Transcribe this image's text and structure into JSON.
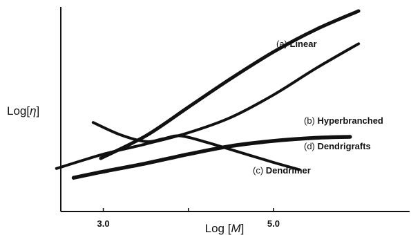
{
  "chart_data": {
    "type": "line",
    "xlabel_prefix": "Log [",
    "xlabel_var": "M",
    "xlabel_suffix": "]",
    "ylabel_prefix": "Log[",
    "ylabel_var": "η",
    "ylabel_suffix": "]",
    "xlim": [
      2.5,
      6.6
    ],
    "ylim": [
      0,
      10
    ],
    "x_ticks": [
      {
        "value": 3.0,
        "label": "3.0"
      },
      {
        "value": 4.0,
        "label": ""
      },
      {
        "value": 5.0,
        "label": "5.0"
      }
    ],
    "series": [
      {
        "key": "a",
        "prefix": "(a) ",
        "name": "Linear",
        "points": [
          [
            2.97,
            2.6
          ],
          [
            3.5,
            3.7
          ],
          [
            4.0,
            5.1
          ],
          [
            4.5,
            6.5
          ],
          [
            5.0,
            7.8
          ],
          [
            5.5,
            8.9
          ],
          [
            6.0,
            9.8
          ]
        ]
      },
      {
        "key": "b",
        "prefix": "(b) ",
        "name": "Hyperbranched",
        "points": [
          [
            2.45,
            2.1
          ],
          [
            3.0,
            2.8
          ],
          [
            3.5,
            3.3
          ],
          [
            4.0,
            3.85
          ],
          [
            4.5,
            4.6
          ],
          [
            5.0,
            5.7
          ],
          [
            5.5,
            7.0
          ],
          [
            6.0,
            8.2
          ]
        ]
      },
      {
        "key": "c",
        "prefix": "(c) ",
        "name": "Dendrimer",
        "points": [
          [
            2.88,
            4.35
          ],
          [
            3.2,
            3.75
          ],
          [
            3.5,
            3.42
          ],
          [
            3.7,
            3.55
          ],
          [
            3.9,
            3.7
          ],
          [
            4.2,
            3.4
          ],
          [
            4.6,
            2.9
          ],
          [
            5.0,
            2.4
          ],
          [
            5.3,
            2.05
          ]
        ]
      },
      {
        "key": "d",
        "prefix": "(d) ",
        "name": "Dendrigrafts",
        "points": [
          [
            2.65,
            1.65
          ],
          [
            3.0,
            1.95
          ],
          [
            3.5,
            2.35
          ],
          [
            4.0,
            2.8
          ],
          [
            4.5,
            3.2
          ],
          [
            5.0,
            3.45
          ],
          [
            5.5,
            3.6
          ],
          [
            5.9,
            3.65
          ]
        ]
      }
    ]
  }
}
